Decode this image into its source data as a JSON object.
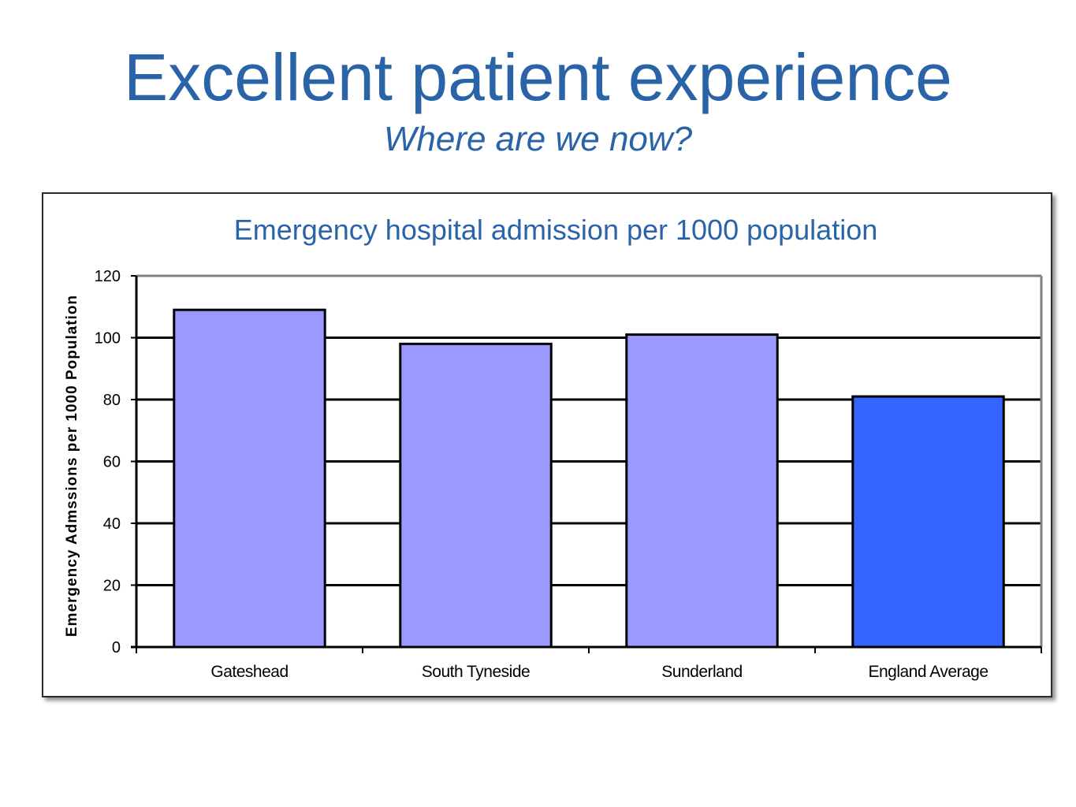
{
  "slide": {
    "title": "Excellent patient experience",
    "subtitle": "Where are we now?"
  },
  "colors": {
    "title": "#2a63a8",
    "bar_local": "#9999ff",
    "bar_england": "#3366ff",
    "plot_bg": "#ffffff",
    "gridline": "#000000",
    "plot_border": "#808080"
  },
  "chart_data": {
    "type": "bar",
    "title": "Emergency hospital admission per 1000 population",
    "xlabel": "",
    "ylabel": "Emergency Admssions per 1000 Population",
    "categories": [
      "Gateshead",
      "South Tyneside",
      "Sunderland",
      "England Average"
    ],
    "values": [
      109,
      98,
      101,
      81
    ],
    "bar_colors": [
      "#9999ff",
      "#9999ff",
      "#9999ff",
      "#3366ff"
    ],
    "ylim": [
      0,
      120
    ],
    "yticks": [
      0,
      20,
      40,
      60,
      80,
      100,
      120
    ],
    "grid": true,
    "legend": "none"
  }
}
